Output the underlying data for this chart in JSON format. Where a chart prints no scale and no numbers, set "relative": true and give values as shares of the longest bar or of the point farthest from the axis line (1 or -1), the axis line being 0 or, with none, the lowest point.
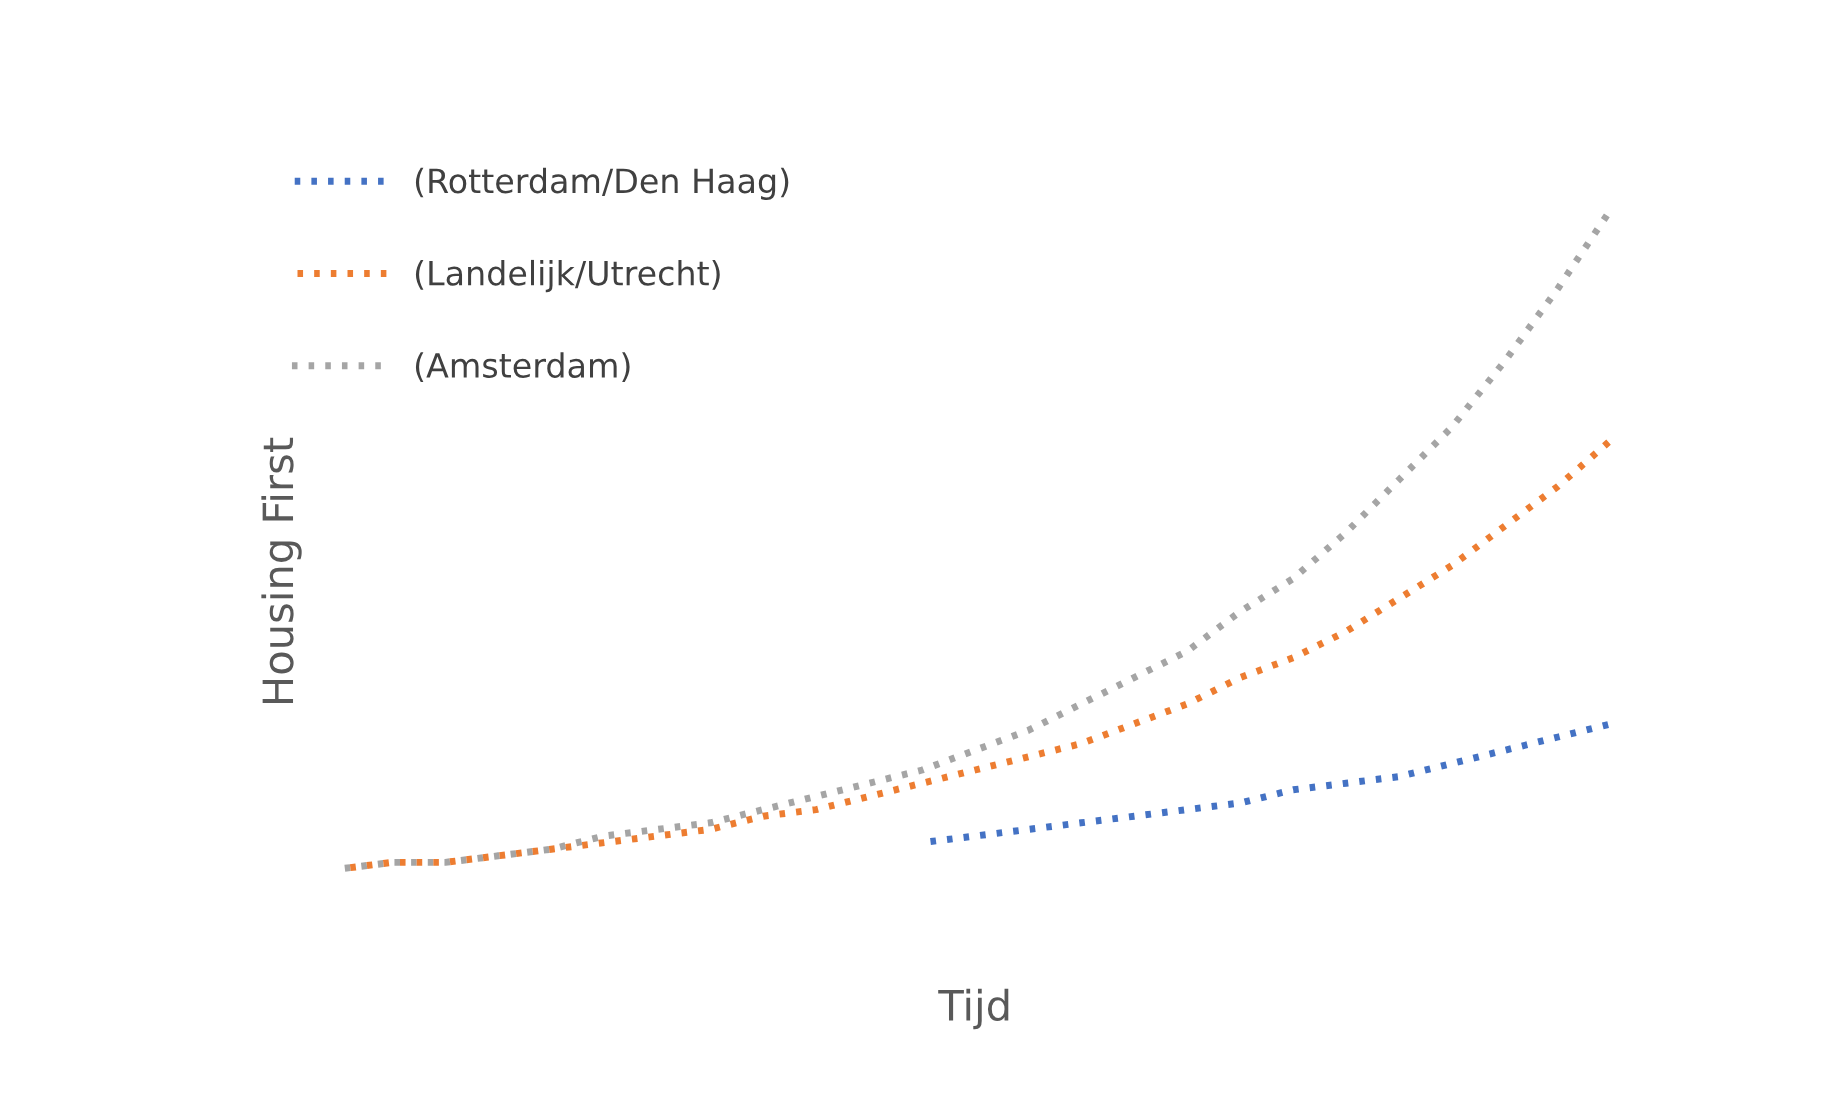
{
  "chart_data": {
    "type": "line",
    "relative": true,
    "xlabel": "Tijd",
    "ylabel": "Housing First",
    "categories": [
      null,
      null,
      null,
      null,
      null,
      null,
      null,
      null,
      null,
      null,
      null,
      null,
      null,
      null,
      null,
      null,
      null,
      null,
      null,
      null,
      null,
      null,
      null,
      null,
      null
    ],
    "series": [
      {
        "name": "(Rotterdam/Den Haag)",
        "color": "#4472c4",
        "values": [
          null,
          null,
          null,
          null,
          null,
          null,
          null,
          null,
          null,
          null,
          null,
          0.04,
          0.05,
          0.06,
          0.07,
          0.08,
          0.09,
          0.1,
          0.12,
          0.13,
          0.14,
          0.16,
          0.18,
          0.2,
          0.22
        ]
      },
      {
        "name": "(Landelijk/Utrecht)",
        "color": "#ed7d31",
        "values": [
          0,
          0.01,
          0.01,
          0.02,
          0.03,
          0.04,
          0.05,
          0.06,
          0.08,
          0.09,
          0.11,
          0.13,
          0.15,
          0.17,
          0.19,
          0.22,
          0.25,
          0.29,
          0.32,
          0.36,
          0.41,
          0.46,
          0.52,
          0.58,
          0.65
        ]
      },
      {
        "name": "(Amsterdam)",
        "color": "#a5a5a5",
        "values": [
          0,
          0.01,
          0.01,
          0.02,
          0.03,
          0.05,
          0.06,
          0.07,
          0.09,
          0.11,
          0.13,
          0.15,
          0.18,
          0.21,
          0.25,
          0.29,
          0.33,
          0.39,
          0.44,
          0.51,
          0.59,
          0.67,
          0.77,
          0.88,
          1.0
        ]
      }
    ],
    "line_style": "dotted",
    "marker": "none",
    "grid": false,
    "legend": "top left"
  }
}
